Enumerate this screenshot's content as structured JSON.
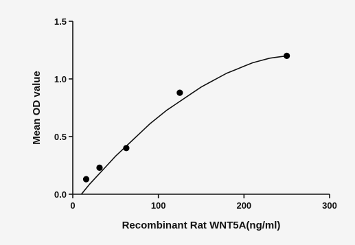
{
  "colors": {
    "background": "#f5f5f5",
    "axis": "#111111",
    "curve": "#111111",
    "points": "#000000"
  },
  "chart_data": {
    "type": "scatter",
    "title": "",
    "xlabel": "Recombinant Rat WNT5A(ng/ml)",
    "ylabel": "Mean OD value",
    "xlim": [
      0,
      300
    ],
    "ylim": [
      0.0,
      1.5
    ],
    "x_ticks": [
      0,
      100,
      200,
      300
    ],
    "y_ticks": [
      0.0,
      0.5,
      1.0,
      1.5
    ],
    "x_tick_labels": [
      "0",
      "100",
      "200",
      "300"
    ],
    "y_tick_labels": [
      "0.0",
      "0.5",
      "1.0",
      "1.5"
    ],
    "grid": false,
    "legend": "none",
    "series": [
      {
        "x": [
          15.625,
          31.25,
          62.5,
          125,
          250
        ],
        "y": [
          0.13,
          0.23,
          0.4,
          0.88,
          1.2
        ]
      }
    ],
    "fit_curve": {
      "type": "line",
      "x": [
        10,
        20,
        30,
        40,
        50,
        60,
        70,
        80,
        90,
        100,
        110,
        120,
        130,
        140,
        150,
        160,
        170,
        180,
        190,
        200,
        210,
        220,
        230,
        240,
        250
      ],
      "y": [
        0.0,
        0.09,
        0.17,
        0.25,
        0.33,
        0.4,
        0.47,
        0.54,
        0.61,
        0.67,
        0.73,
        0.78,
        0.83,
        0.88,
        0.93,
        0.97,
        1.01,
        1.05,
        1.08,
        1.11,
        1.14,
        1.16,
        1.18,
        1.19,
        1.2
      ]
    }
  }
}
